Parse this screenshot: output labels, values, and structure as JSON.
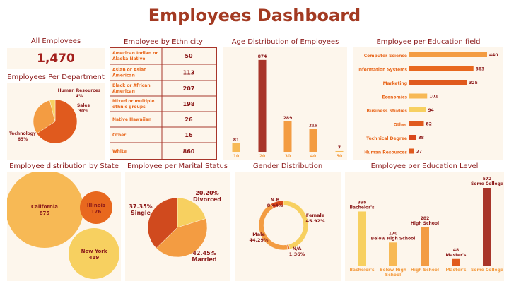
{
  "page": {
    "title": "Employees Dashboard"
  },
  "kpi": {
    "label": "All Employees",
    "value": "1,470"
  },
  "chart_data": [
    {
      "id": "department",
      "type": "pie",
      "title": "Employees Per Department",
      "slices": [
        {
          "label": "Technology",
          "pct": "65%",
          "value": 65,
          "color": "#e05a1e"
        },
        {
          "label": "Sales",
          "pct": "30%",
          "value": 30,
          "color": "#f39c42"
        },
        {
          "label": "Human Resources",
          "pct": "4%",
          "value": 4,
          "color": "#f7d060"
        }
      ]
    },
    {
      "id": "ethnicity",
      "type": "table",
      "title": "Employee by Ethnicity",
      "rows": [
        {
          "label": "American Indian or Alaska Native",
          "value": "50"
        },
        {
          "label": "Asian or Asian American",
          "value": "113"
        },
        {
          "label": "Black or African American",
          "value": "207"
        },
        {
          "label": "Mixed or multiple ethnic groups",
          "value": "198"
        },
        {
          "label": "Native Hawaiian",
          "value": "26"
        },
        {
          "label": "Other",
          "value": "16"
        },
        {
          "label": "White",
          "value": "860"
        }
      ]
    },
    {
      "id": "age",
      "type": "bar",
      "title": "Age Distribution of Employees",
      "categories": [
        "10",
        "20",
        "30",
        "40",
        "50"
      ],
      "values": [
        81,
        874,
        289,
        219,
        7
      ],
      "colors": [
        "#f7b955",
        "#a8352a",
        "#f39c42",
        "#f39c42",
        "#f7b955"
      ],
      "ylim": [
        0,
        900
      ]
    },
    {
      "id": "education_field",
      "type": "bar",
      "orientation": "horizontal",
      "title": "Employee per Education field",
      "categories": [
        "Computer Science",
        "Information Systems",
        "Marketing",
        "Economics",
        "Business Studies",
        "Other",
        "Technical Degree",
        "Human Resources"
      ],
      "values": [
        440,
        363,
        325,
        101,
        94,
        82,
        38,
        27
      ],
      "colors": [
        "#f39c42",
        "#e8681e",
        "#e05a1e",
        "#f7b955",
        "#f7d060",
        "#e05a1e",
        "#d9481a",
        "#e05a1e"
      ],
      "xlim": [
        0,
        440
      ]
    },
    {
      "id": "state",
      "type": "bubble",
      "title": "Employee distribution by State",
      "items": [
        {
          "label": "California",
          "value": "875",
          "color": "#f7b955"
        },
        {
          "label": "Illinois",
          "value": "176",
          "color": "#e8681e"
        },
        {
          "label": "New York",
          "value": "419",
          "color": "#f7d060"
        }
      ]
    },
    {
      "id": "marital",
      "type": "pie",
      "title": "Employee per Marital Status",
      "slices": [
        {
          "label": "Divorced",
          "pct": "20.20%",
          "value": 20.2,
          "color": "#f7d060"
        },
        {
          "label": "Married",
          "pct": "42.45%",
          "value": 42.45,
          "color": "#f39c42"
        },
        {
          "label": "Single",
          "pct": "37.35%",
          "value": 37.35,
          "color": "#d04a1e"
        }
      ]
    },
    {
      "id": "gender",
      "type": "donut",
      "title": "Gender Distribution",
      "slices": [
        {
          "label": "Female",
          "pct": "45.92%",
          "value": 45.92,
          "color": "#f7d060"
        },
        {
          "label": "N/A",
          "pct": "1.36%",
          "value": 1.36,
          "color": "#e8681e"
        },
        {
          "label": "Male",
          "pct": "44.29%",
          "value": 44.29,
          "color": "#f39c42"
        },
        {
          "label": "N.B",
          "pct": "8.44%",
          "value": 8.44,
          "color": "#d9481a"
        }
      ]
    },
    {
      "id": "education_level",
      "type": "bar",
      "title": "Employee per Education Level",
      "categories": [
        "Bachelor's",
        "Below High School",
        "High School",
        "Master's",
        "Some College"
      ],
      "values": [
        398,
        170,
        282,
        48,
        572
      ],
      "colors": [
        "#f7d060",
        "#f7b955",
        "#f39c42",
        "#e05a1e",
        "#a8352a"
      ],
      "ylim": [
        0,
        572
      ]
    }
  ]
}
